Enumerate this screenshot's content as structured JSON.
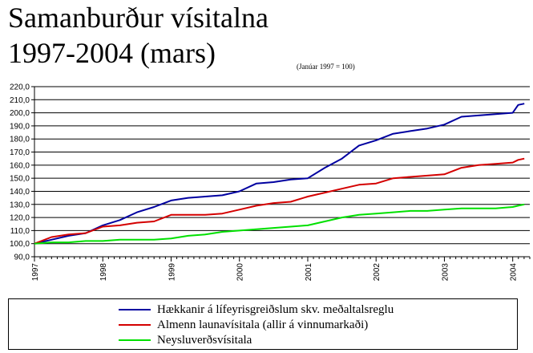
{
  "chart_data": {
    "type": "line",
    "title": [
      "Samanburður vísitalna",
      "1997-2004 (mars)"
    ],
    "subtitle": "(Janúar 1997 = 100)",
    "xlabel": "",
    "ylabel": "",
    "ylim": [
      90,
      220
    ],
    "yticks": [
      "90,0",
      "100,0",
      "110,0",
      "120,0",
      "130,0",
      "140,0",
      "150,0",
      "160,0",
      "170,0",
      "180,0",
      "190,0",
      "200,0",
      "210,0",
      "220,0"
    ],
    "xticks": [
      "1997",
      "1998",
      "1999",
      "2000",
      "2001",
      "2002",
      "2003",
      "2004"
    ],
    "x": [
      1997.0,
      1997.25,
      1997.5,
      1997.75,
      1998.0,
      1998.25,
      1998.5,
      1998.75,
      1999.0,
      1999.25,
      1999.5,
      1999.75,
      2000.0,
      2000.25,
      2000.5,
      2000.75,
      2001.0,
      2001.25,
      2001.5,
      2001.75,
      2002.0,
      2002.25,
      2002.5,
      2002.75,
      2003.0,
      2003.25,
      2003.5,
      2003.75,
      2004.0,
      2004.08,
      2004.17
    ],
    "series": [
      {
        "name": "Hækkanir á lífeyrisgreiðslum skv. meðaltalsreglu",
        "color": "#0000a0",
        "values": [
          100,
          103,
          106,
          108,
          114,
          118,
          124,
          128,
          133,
          135,
          136,
          137,
          140,
          146,
          147,
          149,
          150,
          158,
          165,
          175,
          179,
          184,
          186,
          188,
          191,
          197,
          198,
          199,
          200,
          206,
          207
        ]
      },
      {
        "name": "Almenn launavísitala (allir á vinnumarkaði)",
        "color": "#d40000",
        "values": [
          100,
          105,
          107,
          108,
          113,
          114,
          116,
          117,
          122,
          122,
          122,
          123,
          126,
          129,
          131,
          132,
          136,
          139,
          142,
          145,
          146,
          150,
          151,
          152,
          153,
          158,
          160,
          161,
          162,
          164,
          165
        ]
      },
      {
        "name": "Neysluverðsvísitala",
        "color": "#00e000",
        "values": [
          100,
          101,
          101,
          102,
          102,
          103,
          103,
          103,
          104,
          106,
          107,
          109,
          110,
          111,
          112,
          113,
          114,
          117,
          120,
          122,
          123,
          124,
          125,
          125,
          126,
          127,
          127,
          127,
          128,
          129,
          130
        ]
      }
    ],
    "grid": true,
    "legend_position": "bottom"
  }
}
